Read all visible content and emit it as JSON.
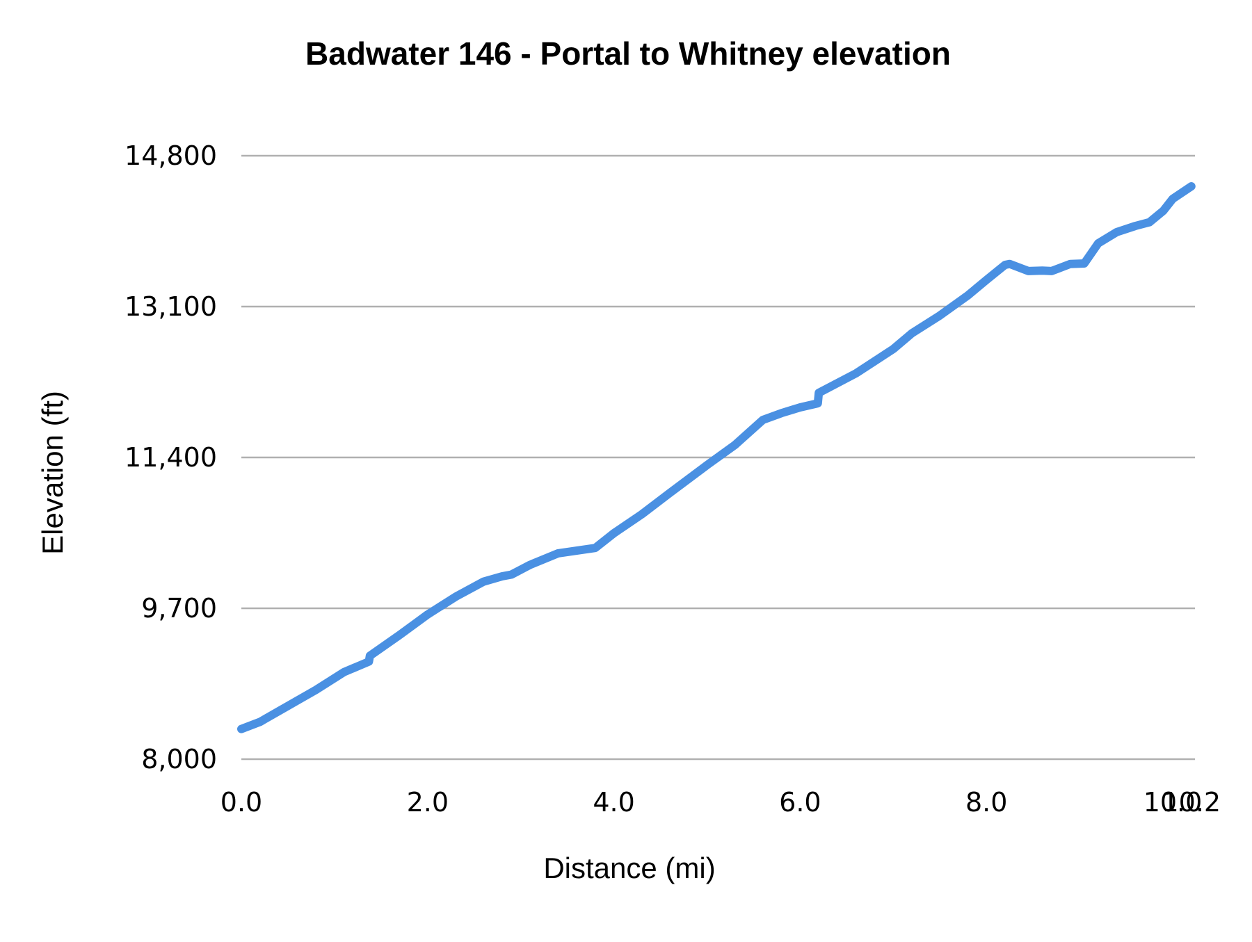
{
  "chart_data": {
    "type": "line",
    "title": "Badwater 146 - Portal to Whitney elevation",
    "xlabel": "Distance (mi)",
    "ylabel": "Elevation (ft)",
    "xlim": [
      0,
      10.2
    ],
    "ylim": [
      8000,
      14800
    ],
    "x_ticks": [
      "0.0",
      "2.0",
      "4.0",
      "6.0",
      "8.0",
      "10.0",
      "10.2"
    ],
    "x_tick_values": [
      0,
      2,
      4,
      6,
      8,
      10,
      10.2
    ],
    "y_ticks": [
      "8,000",
      "9,700",
      "11,400",
      "13,100",
      "14,800"
    ],
    "y_tick_values": [
      8000,
      9700,
      11400,
      13100,
      14800
    ],
    "grid": "horizontal",
    "legend": "none",
    "series": [
      {
        "name": "Elevation",
        "color": "#4a90e2",
        "x": [
          0.0,
          0.2,
          0.5,
          0.8,
          1.1,
          1.37,
          1.38,
          1.7,
          2.0,
          2.3,
          2.6,
          2.8,
          2.9,
          3.1,
          3.4,
          3.8,
          4.0,
          4.3,
          4.6,
          5.0,
          5.3,
          5.6,
          5.8,
          6.0,
          6.19,
          6.2,
          6.6,
          7.0,
          7.2,
          7.5,
          7.8,
          8.0,
          8.2,
          8.25,
          8.45,
          8.6,
          8.7,
          8.9,
          9.05,
          9.2,
          9.4,
          9.6,
          9.75,
          9.9,
          10.0,
          10.2
        ],
        "values": [
          8340,
          8420,
          8600,
          8780,
          8980,
          9100,
          9165,
          9400,
          9630,
          9830,
          10000,
          10060,
          10080,
          10190,
          10320,
          10380,
          10546,
          10760,
          11000,
          11314,
          11541,
          11823,
          11900,
          11964,
          12010,
          12128,
          12348,
          12622,
          12800,
          13000,
          13225,
          13400,
          13570,
          13580,
          13500,
          13505,
          13500,
          13580,
          13586,
          13813,
          13940,
          14009,
          14050,
          14180,
          14314,
          14455
        ]
      }
    ]
  }
}
